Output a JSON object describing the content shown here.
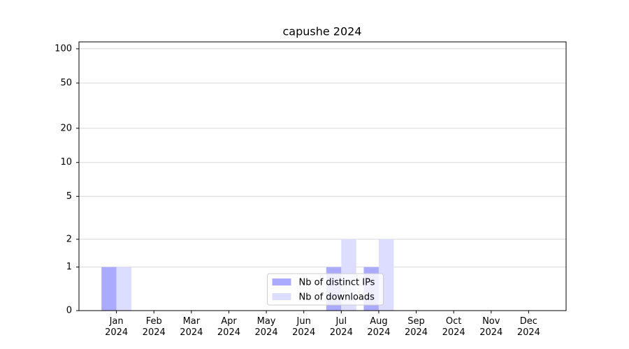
{
  "chart_data": {
    "type": "bar",
    "title": "capushe 2024",
    "categories": [
      "Jan\n2024",
      "Feb\n2024",
      "Mar\n2024",
      "Apr\n2024",
      "May\n2024",
      "Jun\n2024",
      "Jul\n2024",
      "Aug\n2024",
      "Sep\n2024",
      "Oct\n2024",
      "Nov\n2024",
      "Dec\n2024"
    ],
    "series": [
      {
        "name": "Nb of distinct IPs",
        "color": "#aaaaff",
        "values": [
          1,
          0,
          0,
          0,
          0,
          0,
          1,
          1,
          0,
          0,
          0,
          0
        ]
      },
      {
        "name": "Nb of downloads",
        "color": "#ddddff",
        "values": [
          1,
          0,
          0,
          0,
          0,
          0,
          2,
          2,
          0,
          0,
          0,
          0
        ]
      }
    ],
    "yscale": "asinh",
    "ylim": [
      0,
      115
    ],
    "yticks": [
      0,
      1,
      2,
      5,
      10,
      20,
      50,
      100
    ],
    "grid": true,
    "legend": "lower center"
  }
}
